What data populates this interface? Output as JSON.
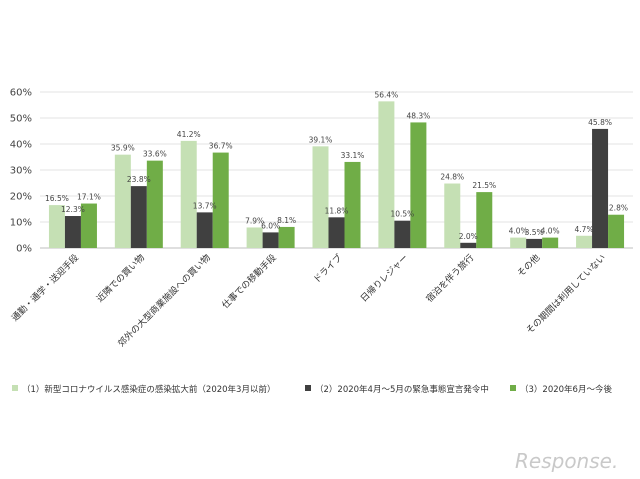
{
  "chart_data": {
    "type": "bar",
    "categories": [
      "通勤・通学・送迎手段",
      "近隣での買い物",
      "郊外の大型商業施設への買い物",
      "仕事での移動手段",
      "ドライブ",
      "日帰りレジャー",
      "宿泊を伴う旅行",
      "その他",
      "その期間は利用していない"
    ],
    "series": [
      {
        "name": "（1）新型コロナウイルス感染症の感染拡大前（2020年3月以前）",
        "color": "#c5e0b4",
        "values": [
          16.5,
          35.9,
          41.2,
          7.9,
          39.1,
          56.4,
          24.8,
          4.0,
          4.7
        ]
      },
      {
        "name": "（2）2020年4月～5月の緊急事態宣言発令中",
        "color": "#404040",
        "values": [
          12.3,
          23.8,
          13.7,
          6.0,
          11.8,
          10.5,
          2.0,
          3.5,
          45.8
        ]
      },
      {
        "name": "（3）2020年6月～今後",
        "color": "#70ad47",
        "values": [
          17.1,
          33.6,
          36.7,
          8.1,
          33.1,
          48.3,
          21.5,
          4.0,
          12.8
        ]
      }
    ],
    "y_ticks": [
      "0%",
      "10%",
      "20%",
      "30%",
      "40%",
      "50%",
      "60%"
    ],
    "ylim": [
      0,
      60
    ],
    "grid": true,
    "legend_position": "bottom",
    "xlabel": "",
    "ylabel": ""
  },
  "logo_text": "Response."
}
